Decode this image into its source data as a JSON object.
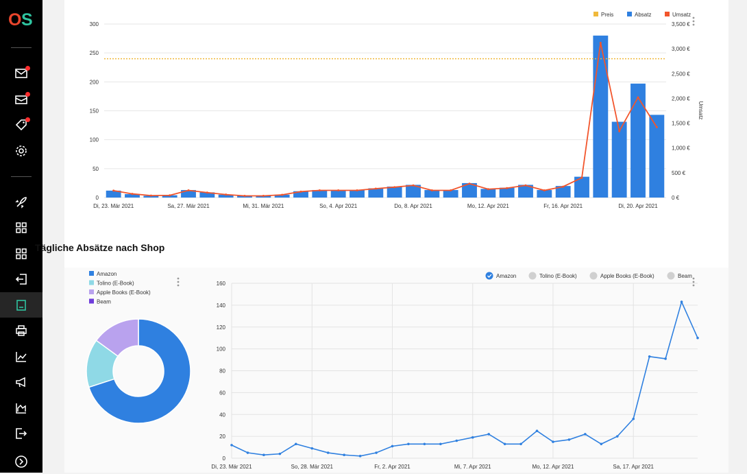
{
  "brand": {
    "logo_text": "OS",
    "logo_colors": [
      "#e8452c",
      "#2fc4a0"
    ]
  },
  "sidebar": {
    "items": [
      {
        "name": "messages-icon",
        "badge": true
      },
      {
        "name": "mail-icon",
        "badge": true
      },
      {
        "name": "tag-icon",
        "badge": true
      },
      {
        "name": "gear-icon",
        "badge": false
      },
      {
        "name": "rocket-icon",
        "badge": false
      },
      {
        "name": "grid-icon",
        "badge": false
      },
      {
        "name": "grid-alt-icon",
        "badge": false
      },
      {
        "name": "import-icon",
        "badge": false
      },
      {
        "name": "document-icon",
        "badge": false,
        "active": true
      },
      {
        "name": "printer-icon",
        "badge": false
      },
      {
        "name": "line-chart-icon",
        "badge": false
      },
      {
        "name": "megaphone-icon",
        "badge": false
      },
      {
        "name": "area-chart-icon",
        "badge": false
      },
      {
        "name": "logout-icon",
        "badge": false
      },
      {
        "name": "arrow-right-circle-icon",
        "badge": false
      }
    ]
  },
  "section_title": "Tägliche Absätze nach Shop",
  "chart_data": [
    {
      "type": "bar",
      "legend": [
        "Preis",
        "Absatz",
        "Umsatz"
      ],
      "legend_colors": {
        "Preis": "#f0b93b",
        "Absatz": "#2f80e0",
        "Umsatz": "#f2552c"
      },
      "legend_placement": "top-right",
      "x_tick_labels": [
        "Di, 23. Mär 2021",
        "Sa, 27. Mär 2021",
        "Mi, 31. Mär 2021",
        "So, 4. Apr 2021",
        "Do, 8. Apr 2021",
        "Mo, 12. Apr 2021",
        "Fr, 16. Apr 2021",
        "Di, 20. Apr 2021"
      ],
      "y_left_ticks": [
        "0",
        "50",
        "100",
        "150",
        "200",
        "250",
        "300"
      ],
      "y_left_lim": [
        0,
        300
      ],
      "y_right_label": "Umsatz",
      "y_right_ticks": [
        "0 €",
        "500 €",
        "1,000 €",
        "1,500 €",
        "2,000 €",
        "2,500 €",
        "3,000 €",
        "3,500 €"
      ],
      "y_right_lim": [
        0,
        3500
      ],
      "grid": true,
      "categories": [
        "23. Mär",
        "24. Mär",
        "25. Mär",
        "26. Mär",
        "27. Mär",
        "28. Mär",
        "29. Mär",
        "30. Mär",
        "31. Mär",
        "1. Apr",
        "2. Apr",
        "3. Apr",
        "4. Apr",
        "5. Apr",
        "6. Apr",
        "7. Apr",
        "8. Apr",
        "9. Apr",
        "10. Apr",
        "11. Apr",
        "12. Apr",
        "13. Apr",
        "14. Apr",
        "15. Apr",
        "16. Apr",
        "17. Apr",
        "18. Apr",
        "19. Apr",
        "20. Apr",
        "21. Apr"
      ],
      "series": [
        {
          "name": "Absatz",
          "type": "bar",
          "axis": "left",
          "values": [
            12,
            6,
            3,
            4,
            13,
            9,
            5,
            3,
            3,
            5,
            11,
            13,
            13,
            13,
            16,
            19,
            22,
            13,
            13,
            25,
            15,
            17,
            22,
            13,
            20,
            36,
            280,
            131,
            197,
            143
          ]
        },
        {
          "name": "Umsatz",
          "type": "line",
          "axis": "right",
          "values": [
            140,
            75,
            40,
            45,
            145,
            100,
            60,
            35,
            35,
            55,
            120,
            145,
            145,
            145,
            180,
            210,
            245,
            145,
            145,
            280,
            170,
            190,
            245,
            145,
            220,
            400,
            3120,
            1340,
            2020,
            1420
          ]
        },
        {
          "name": "Preis",
          "type": "line",
          "axis": "left",
          "values": [
            240,
            240,
            240,
            240,
            240,
            240,
            240,
            240,
            240,
            240,
            240,
            240,
            240,
            240,
            240,
            240,
            240,
            240,
            240,
            240,
            240,
            240,
            240,
            240,
            240,
            240,
            240,
            240,
            240,
            240
          ]
        }
      ]
    },
    {
      "type": "pie",
      "legend": [
        "Amazon",
        "Tolino (E-Book)",
        "Apple Books (E-Book)",
        "Beam"
      ],
      "legend_colors": [
        "#2f80e0",
        "#8fd9e6",
        "#b9a2ee",
        "#6f3ddb"
      ],
      "legend_placement": "top-left",
      "values": [
        70,
        15,
        15,
        0
      ]
    },
    {
      "type": "line",
      "legend": [
        "Amazon",
        "Tolino (E-Book)",
        "Apple Books (E-Book)",
        "Beam"
      ],
      "legend_checked": [
        true,
        false,
        false,
        false
      ],
      "legend_placement": "top-right",
      "x_tick_labels": [
        "Di, 23. Mär 2021",
        "So, 28. Mär 2021",
        "Fr, 2. Apr 2021",
        "Mi, 7. Apr 2021",
        "Mo, 12. Apr 2021",
        "Sa, 17. Apr 2021"
      ],
      "y_ticks": [
        "0",
        "20",
        "40",
        "60",
        "80",
        "100",
        "120",
        "140",
        "160"
      ],
      "ylim": [
        0,
        160
      ],
      "grid": true,
      "series": [
        {
          "name": "Amazon",
          "color": "#2f80e0",
          "values": [
            12,
            5,
            3,
            4,
            13,
            9,
            5,
            3,
            2,
            5,
            11,
            13,
            13,
            13,
            16,
            19,
            22,
            13,
            13,
            25,
            15,
            17,
            22,
            13,
            20,
            36,
            93,
            91,
            143,
            110
          ]
        }
      ]
    }
  ]
}
